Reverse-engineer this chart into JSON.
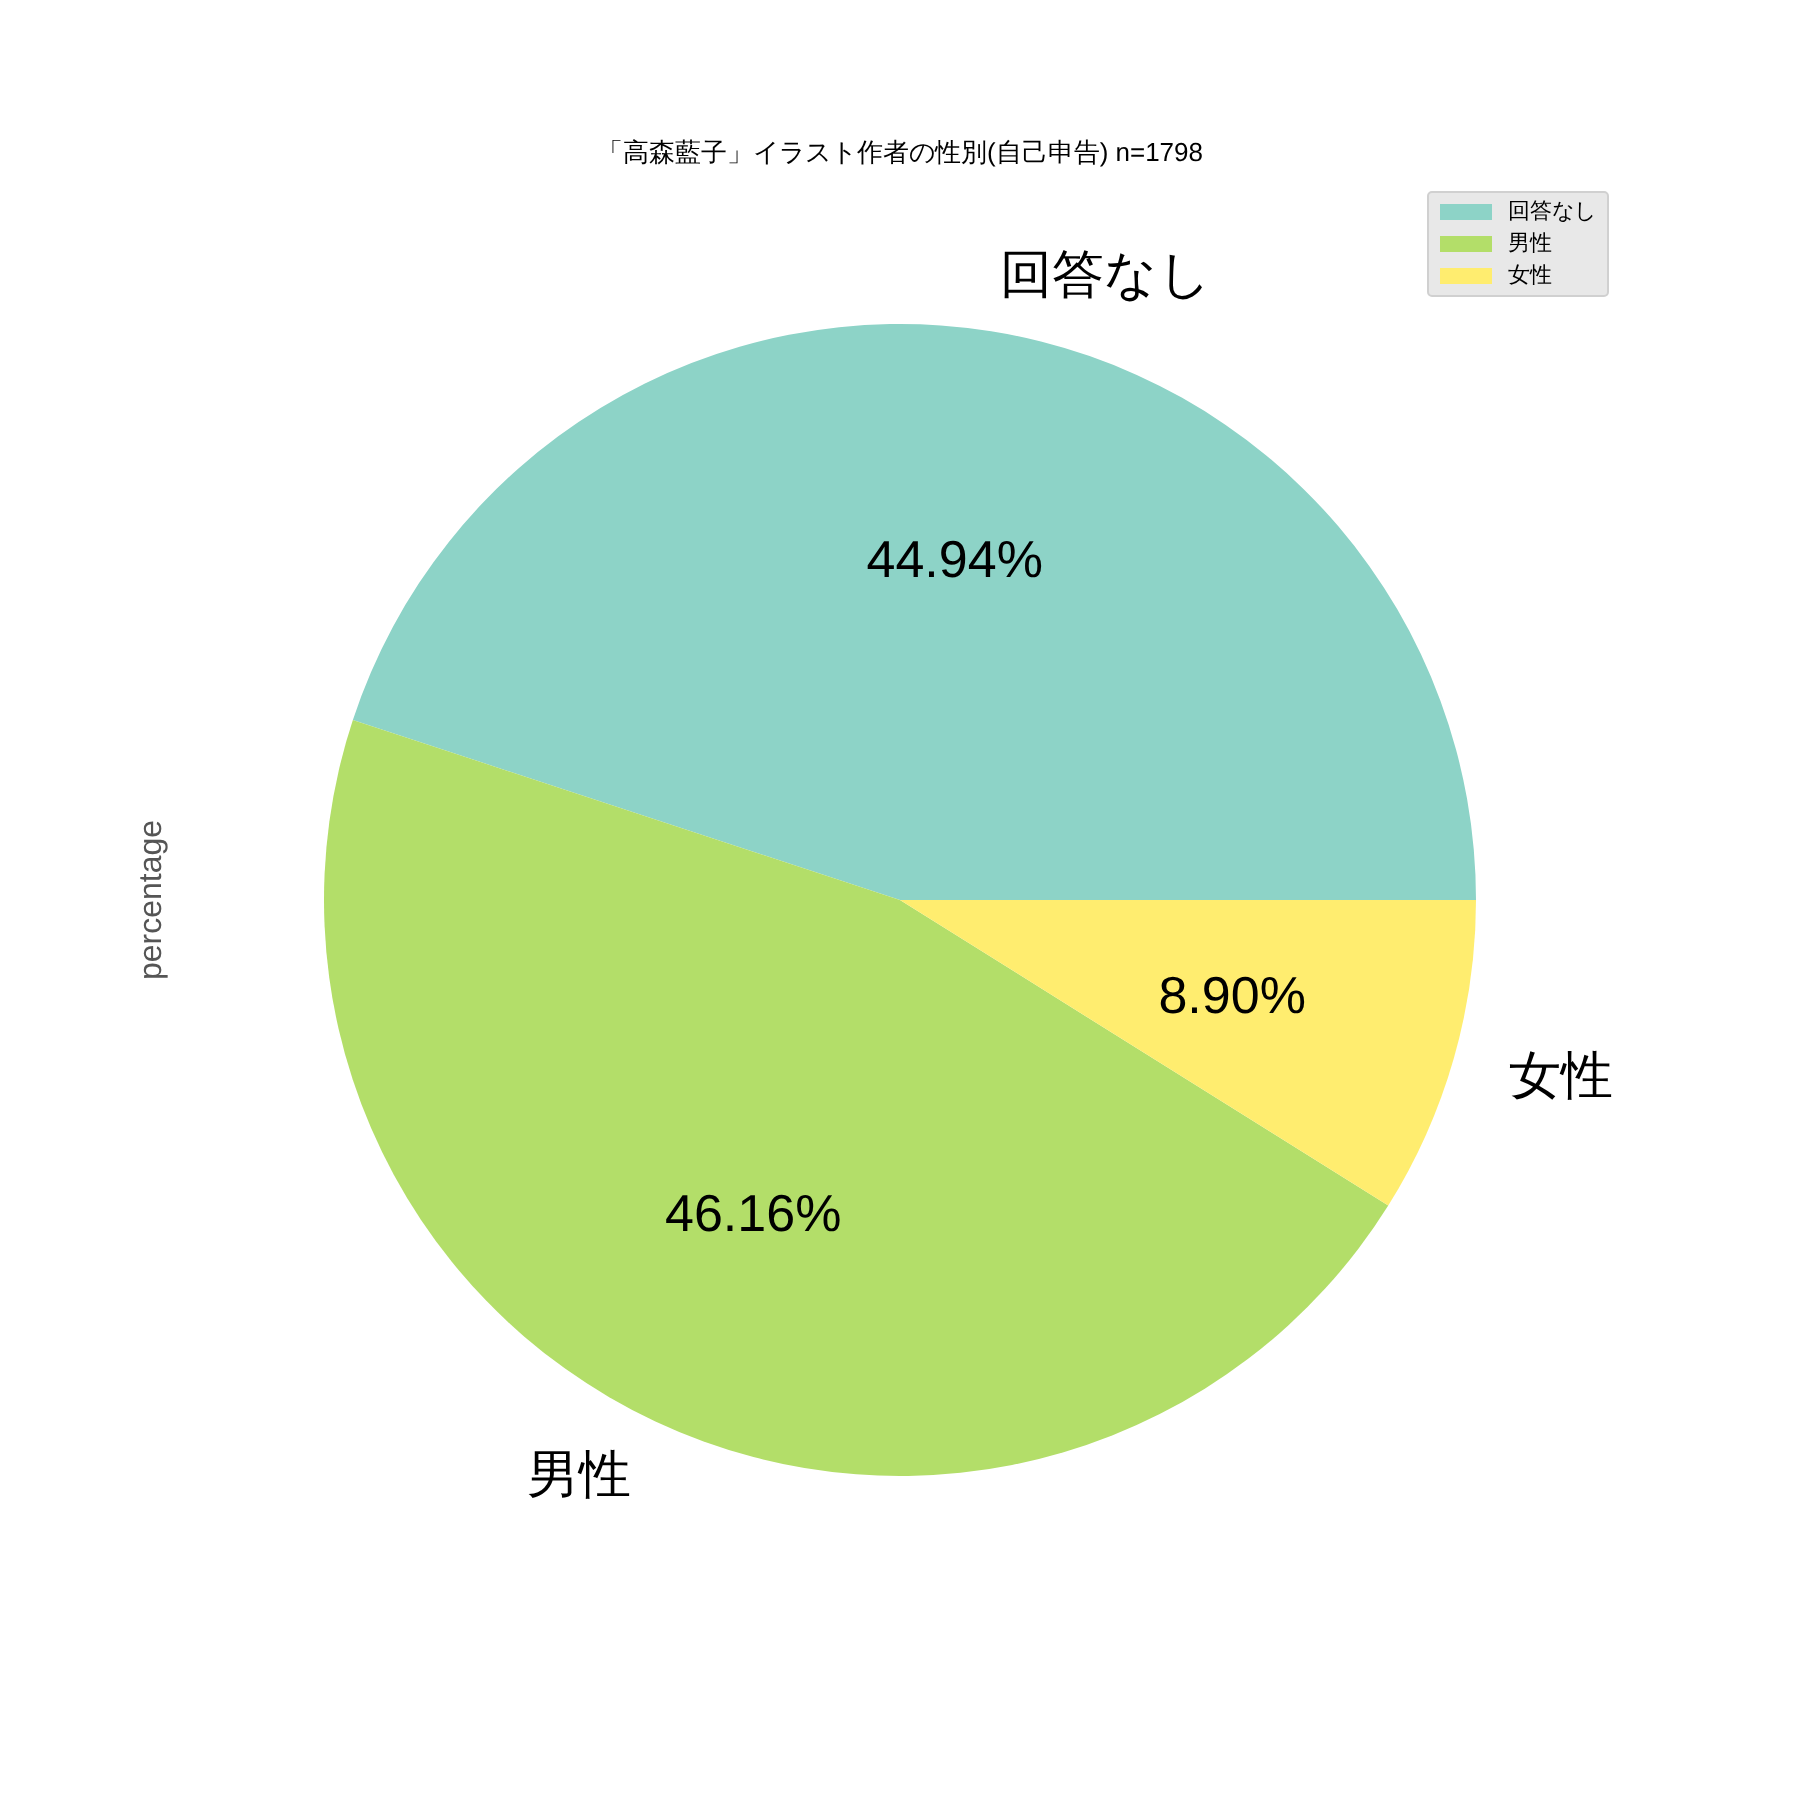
{
  "chart_data": {
    "type": "pie",
    "title": "「高森藍子」イラスト作者の性別(自己申告) n=1798",
    "ylabel": "percentage",
    "categories": [
      "回答なし",
      "男性",
      "女性"
    ],
    "values": [
      44.94,
      46.16,
      8.9
    ],
    "colors": [
      "#8dd3c7",
      "#b3de69",
      "#ffed6f"
    ],
    "value_labels": [
      "44.94%",
      "46.16%",
      "8.90%"
    ],
    "legend": "top right"
  }
}
